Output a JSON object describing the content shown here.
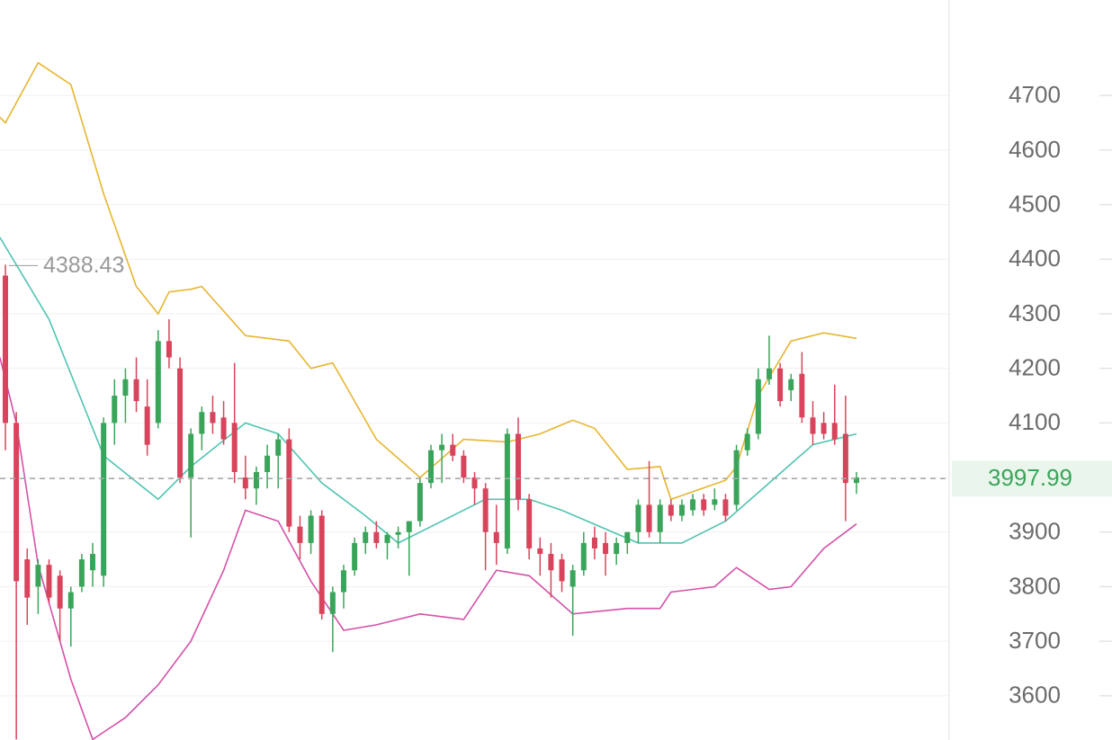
{
  "chart_data": {
    "type": "candlestick",
    "ylim": [
      3519,
      4875
    ],
    "yticks": [
      3600,
      3700,
      3800,
      3900,
      4000,
      4100,
      4200,
      4300,
      4400,
      4500,
      4600,
      4700
    ],
    "grid": true,
    "up_color": "#3aa55a",
    "down_color": "#d8445c",
    "open": [
      4370,
      4100,
      3850,
      3800,
      3840,
      3820,
      3760,
      3800,
      3830,
      3820,
      4100,
      4150,
      4180,
      4130,
      4100,
      4250,
      4200,
      4000,
      4080,
      4120,
      4110,
      4100,
      4000,
      3980,
      4010,
      4040,
      4070,
      3910,
      3880,
      3930,
      3750,
      3790,
      3830,
      3880,
      3900,
      3880,
      3895,
      3900,
      3920,
      3990,
      4050,
      4060,
      4040,
      4000,
      3980,
      3900,
      3870,
      4080,
      3960,
      3870,
      3860,
      3850,
      3800,
      3830,
      3890,
      3880,
      3860,
      3880,
      3900,
      3950,
      3900,
      3950,
      3930,
      3940,
      3960,
      3950,
      3960,
      3950,
      4050,
      4080,
      4180,
      4200,
      4160,
      4190,
      4110,
      4100,
      4100,
      4080,
      3990
    ],
    "high": [
      4390,
      4120,
      3870,
      3850,
      3850,
      3830,
      3800,
      3860,
      3880,
      4110,
      4180,
      4200,
      4220,
      4180,
      4270,
      4290,
      4220,
      4090,
      4130,
      4150,
      4140,
      4210,
      4040,
      4020,
      4060,
      4080,
      4090,
      3930,
      3940,
      3940,
      3800,
      3840,
      3890,
      3910,
      3920,
      3900,
      3910,
      3920,
      4000,
      4060,
      4080,
      4080,
      4050,
      4010,
      3990,
      3950,
      4090,
      4110,
      3970,
      3890,
      3880,
      3860,
      3840,
      3900,
      3910,
      3900,
      3890,
      3900,
      3960,
      4030,
      3960,
      3960,
      3960,
      3970,
      3970,
      3980,
      3970,
      4060,
      4090,
      4200,
      4260,
      4210,
      4190,
      4230,
      4140,
      4120,
      4170,
      4150,
      4010
    ],
    "low": [
      4050,
      3520,
      3730,
      3750,
      3770,
      3700,
      3690,
      3790,
      3800,
      3800,
      4060,
      4100,
      4120,
      4040,
      4090,
      4200,
      3990,
      3890,
      4050,
      4080,
      4060,
      3990,
      3960,
      3950,
      3980,
      3980,
      3900,
      3850,
      3860,
      3740,
      3680,
      3760,
      3820,
      3860,
      3870,
      3850,
      3870,
      3820,
      3910,
      3980,
      3990,
      4030,
      3990,
      3950,
      3830,
      3840,
      3860,
      3940,
      3850,
      3820,
      3780,
      3790,
      3710,
      3820,
      3850,
      3820,
      3840,
      3860,
      3880,
      3890,
      3880,
      3920,
      3920,
      3930,
      3930,
      3940,
      3920,
      3940,
      4040,
      4070,
      4170,
      4130,
      4140,
      4100,
      4060,
      4070,
      4060,
      3920,
      3970
    ],
    "close": [
      4100,
      3810,
      3780,
      3840,
      3780,
      3760,
      3790,
      3850,
      3860,
      4100,
      4150,
      4180,
      4140,
      4060,
      4250,
      4220,
      4000,
      4080,
      4120,
      4100,
      4070,
      4010,
      3980,
      4010,
      4040,
      4070,
      3910,
      3880,
      3930,
      3750,
      3790,
      3830,
      3880,
      3900,
      3880,
      3895,
      3900,
      3920,
      3990,
      4050,
      4060,
      4040,
      4000,
      3980,
      3900,
      3880,
      4080,
      3960,
      3870,
      3860,
      3830,
      3810,
      3830,
      3880,
      3870,
      3860,
      3880,
      3900,
      3950,
      3900,
      3950,
      3930,
      3950,
      3960,
      3940,
      3960,
      3930,
      4050,
      4080,
      4180,
      4200,
      4140,
      4180,
      4110,
      4080,
      4080,
      4070,
      3990,
      4000
    ],
    "bands": [
      {
        "color": "#e6b530",
        "x": [
          -0.5,
          0,
          3,
          6,
          9,
          12,
          14,
          15,
          17,
          18,
          22,
          26,
          28,
          30,
          34,
          38,
          42,
          46,
          49,
          52,
          54,
          57,
          60,
          61,
          66,
          67,
          69,
          72,
          75,
          78
        ],
        "values": [
          4660,
          4650,
          4760,
          4720,
          4520,
          4350,
          4300,
          4340,
          4345,
          4350,
          4260,
          4250,
          4200,
          4210,
          4070,
          4000,
          4070,
          4065,
          4080,
          4105,
          4090,
          4015,
          4020,
          3960,
          3995,
          4020,
          4150,
          4250,
          4265,
          4255
        ]
      },
      {
        "color": "#4fc4b0",
        "x": [
          -0.5,
          4,
          9,
          14,
          17,
          22,
          25,
          29,
          33,
          36,
          39,
          44,
          48,
          51,
          58,
          62,
          66,
          70,
          74,
          78
        ],
        "values": [
          4440,
          4290,
          4040,
          3960,
          4020,
          4100,
          4080,
          3990,
          3930,
          3880,
          3910,
          3960,
          3960,
          3940,
          3880,
          3880,
          3920,
          3990,
          4060,
          4080
        ]
      },
      {
        "color": "#d451a8",
        "x": [
          -0.5,
          1,
          3,
          6,
          8,
          11,
          14,
          17,
          20,
          22,
          25,
          28,
          31,
          34,
          38,
          42,
          45,
          48,
          52,
          57,
          60,
          61,
          65,
          67,
          70,
          72,
          75,
          78
        ],
        "values": [
          4220,
          4100,
          3840,
          3630,
          3520,
          3560,
          3620,
          3700,
          3830,
          3940,
          3920,
          3810,
          3720,
          3730,
          3750,
          3740,
          3830,
          3820,
          3750,
          3760,
          3760,
          3790,
          3800,
          3835,
          3795,
          3800,
          3870,
          3915
        ]
      }
    ],
    "high_marker": 4388.43,
    "last_price": 3997.99
  }
}
